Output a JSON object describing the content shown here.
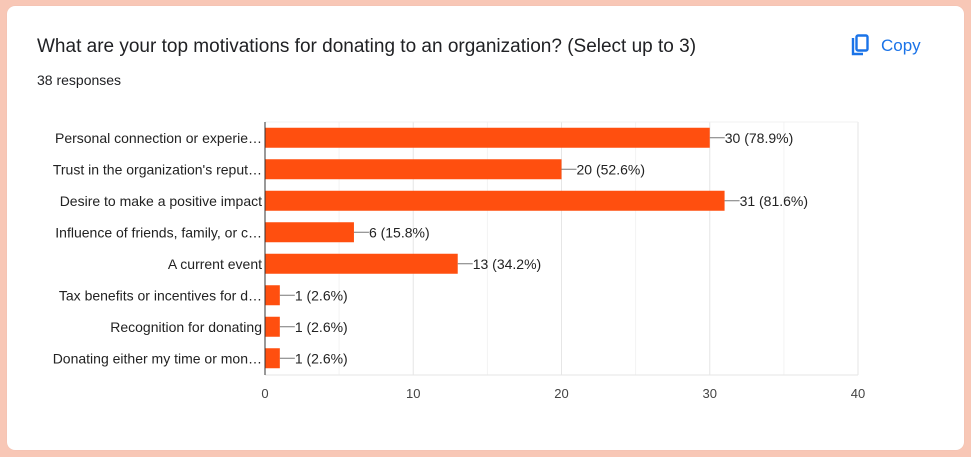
{
  "header": {
    "title": "What are your top motivations for donating to an organization? (Select up to 3)",
    "responses": "38 responses"
  },
  "actions": {
    "copy_label": "Copy",
    "copy_icon": "copy-icon"
  },
  "colors": {
    "bar": "#ff4f0f",
    "accent": "#1a73e8",
    "background": "#f8c7b6"
  },
  "chart_data": {
    "type": "bar",
    "orientation": "horizontal",
    "categories": [
      "Personal connection or experie…",
      "Trust in the organization's reput…",
      "Desire to make a positive impact",
      "Influence of friends, family, or c…",
      "A current event",
      "Tax benefits or incentives for d…",
      "Recognition for donating",
      "Donating either my time or mon…"
    ],
    "values": [
      30,
      20,
      31,
      6,
      13,
      1,
      1,
      1
    ],
    "data_labels": [
      "30 (78.9%)",
      "20 (52.6%)",
      "31 (81.6%)",
      "6 (15.8%)",
      "13 (34.2%)",
      "1 (2.6%)",
      "1 (2.6%)",
      "1 (2.6%)"
    ],
    "xlim": [
      0,
      40
    ],
    "xticks": [
      0,
      10,
      20,
      30,
      40
    ],
    "grid": true,
    "legend": "none"
  }
}
